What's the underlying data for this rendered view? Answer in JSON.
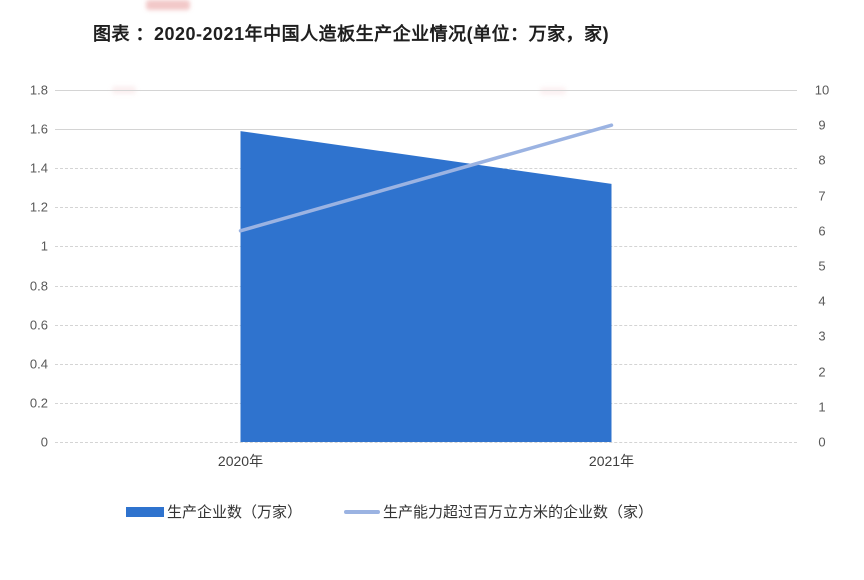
{
  "title": "图表 ：2020-2021年中国人造板生产企业情况(单位：万家，家)",
  "chart_data": {
    "type": "area",
    "subtype": "combo-area-line-dual-axis",
    "title": "图表 ：2020-2021年中国人造板生产企业情况(单位：万家，家)",
    "categories": [
      "2020年",
      "2021年"
    ],
    "series": [
      {
        "name": "生产企业数（万家）",
        "type": "area",
        "axis": "left",
        "values": [
          1.59,
          1.32
        ],
        "color": "#2f73ce"
      },
      {
        "name": "生产能力超过百万立方米的企业数（家）",
        "type": "line",
        "axis": "right",
        "values": [
          6,
          9
        ],
        "color": "#9bb3e2"
      }
    ],
    "left_axis": {
      "min": 0,
      "max": 1.8,
      "ticks": [
        "1.8",
        "1.6",
        "1.4",
        "1.2",
        "1",
        "0.8",
        "0.6",
        "0.4",
        "0.2",
        "0"
      ]
    },
    "right_axis": {
      "min": 0,
      "max": 10,
      "ticks": [
        "10",
        "9",
        "8",
        "7",
        "6",
        "5",
        "4",
        "3",
        "2",
        "1",
        "0"
      ]
    },
    "grid": true,
    "gridline_color": "#d4d4d4",
    "legend_position": "bottom"
  }
}
